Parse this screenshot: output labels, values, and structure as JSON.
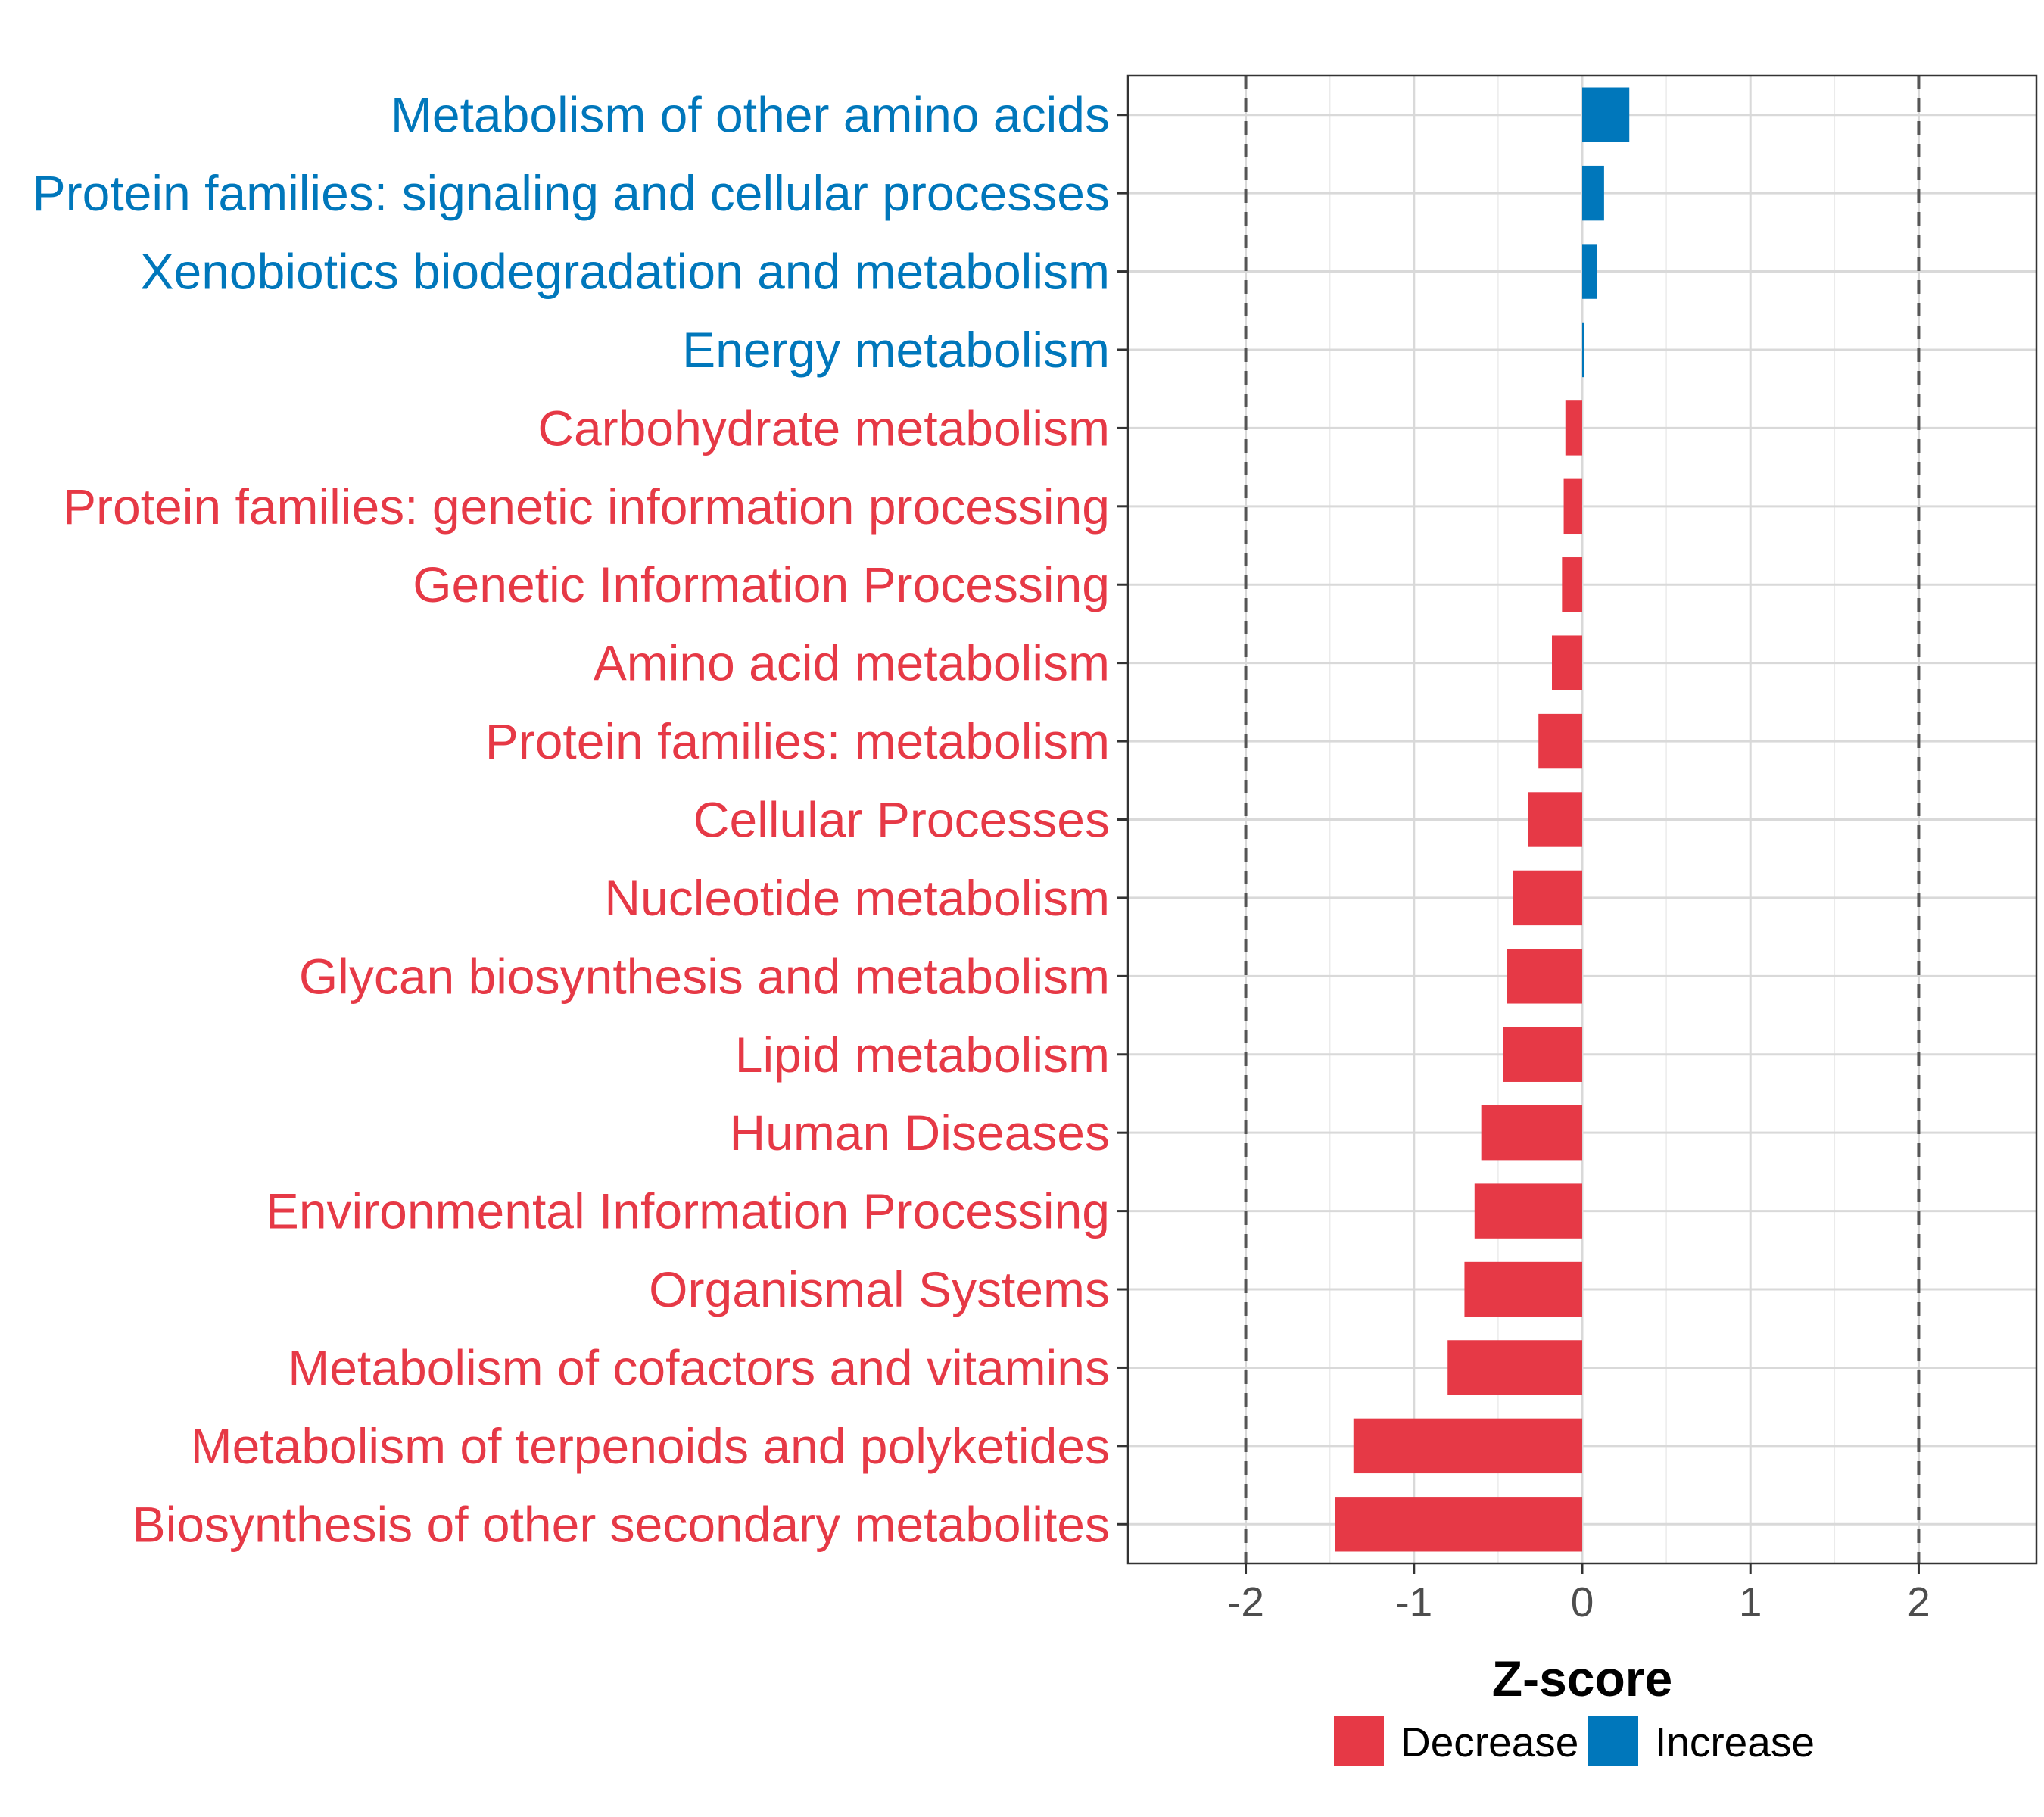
{
  "chart_data": {
    "type": "bar",
    "orientation": "horizontal",
    "title": "",
    "xlabel": "Z-score",
    "ylabel": "",
    "xlim": [
      -2.7,
      2.7
    ],
    "xticks": [
      -2,
      -1,
      0,
      1,
      2
    ],
    "xtick_labels": [
      "-2",
      "-1",
      "0",
      "1",
      "2"
    ],
    "reference_lines": [
      -2,
      2
    ],
    "grid": true,
    "categories": [
      "Metabolism of other amino acids",
      "Protein families: signaling and cellular processes",
      "Xenobiotics biodegradation and metabolism",
      "Energy metabolism",
      "Carbohydrate metabolism",
      "Protein families: genetic information processing",
      "Genetic Information Processing",
      "Amino acid metabolism",
      "Protein families: metabolism",
      "Cellular Processes",
      "Nucleotide metabolism",
      "Glycan biosynthesis and metabolism",
      "Lipid metabolism",
      "Human Diseases",
      "Environmental Information Processing",
      "Organismal Systems",
      "Metabolism of cofactors and vitamins",
      "Metabolism of terpenoids and polyketides",
      "Biosynthesis of other secondary metabolites"
    ],
    "values": [
      0.28,
      0.13,
      0.09,
      0.01,
      -0.1,
      -0.11,
      -0.12,
      -0.18,
      -0.26,
      -0.32,
      -0.41,
      -0.45,
      -0.47,
      -0.6,
      -0.64,
      -0.7,
      -0.8,
      -1.36,
      -1.47
    ],
    "groups": [
      "Increase",
      "Increase",
      "Increase",
      "Increase",
      "Decrease",
      "Decrease",
      "Decrease",
      "Decrease",
      "Decrease",
      "Decrease",
      "Decrease",
      "Decrease",
      "Decrease",
      "Decrease",
      "Decrease",
      "Decrease",
      "Decrease",
      "Decrease",
      "Decrease"
    ],
    "legend": {
      "position": "bottom",
      "items": [
        {
          "label": "Decrease",
          "color": "#e63946"
        },
        {
          "label": "Increase",
          "color": "#0077bb"
        }
      ]
    },
    "colors": {
      "Decrease": "#e63946",
      "Increase": "#0077bb"
    }
  }
}
